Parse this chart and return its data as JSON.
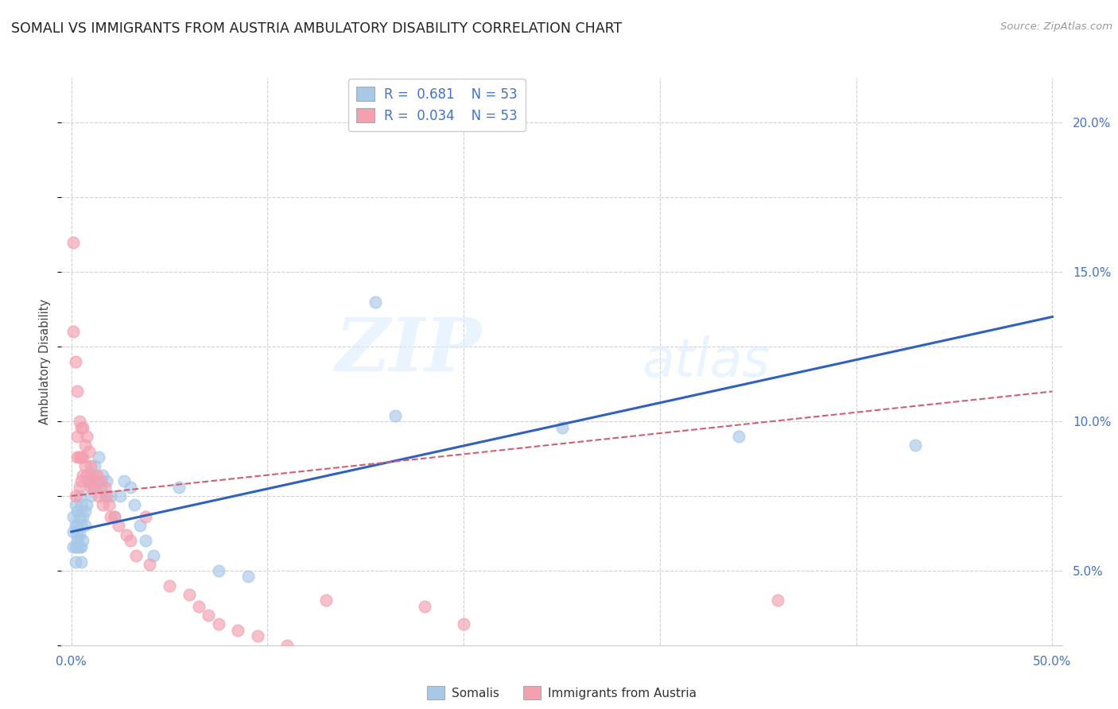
{
  "title": "SOMALI VS IMMIGRANTS FROM AUSTRIA AMBULATORY DISABILITY CORRELATION CHART",
  "source": "Source: ZipAtlas.com",
  "ylabel": "Ambulatory Disability",
  "xlim": [
    -0.005,
    0.505
  ],
  "ylim": [
    0.025,
    0.215
  ],
  "x_ticks": [
    0.0,
    0.1,
    0.2,
    0.3,
    0.4,
    0.5
  ],
  "x_tick_labels": [
    "0.0%",
    "",
    "",
    "",
    "",
    "50.0%"
  ],
  "y_ticks_right": [
    0.05,
    0.1,
    0.15,
    0.2
  ],
  "y_tick_labels_right": [
    "5.0%",
    "10.0%",
    "15.0%",
    "20.0%"
  ],
  "somali_color": "#A8C8E8",
  "austria_color": "#F4A0B0",
  "somali_line_color": "#3060C0",
  "austria_line_color": "#D06070",
  "background_color": "#FFFFFF",
  "grid_color": "#CCCCCC",
  "watermark_zip": "ZIP",
  "watermark_atlas": "atlas",
  "somali_scatter_x": [
    0.001,
    0.001,
    0.001,
    0.002,
    0.002,
    0.002,
    0.002,
    0.003,
    0.003,
    0.003,
    0.003,
    0.003,
    0.004,
    0.004,
    0.004,
    0.004,
    0.005,
    0.005,
    0.005,
    0.005,
    0.006,
    0.006,
    0.007,
    0.007,
    0.008,
    0.009,
    0.01,
    0.01,
    0.011,
    0.012,
    0.013,
    0.014,
    0.015,
    0.016,
    0.017,
    0.018,
    0.02,
    0.022,
    0.025,
    0.027,
    0.03,
    0.032,
    0.035,
    0.038,
    0.042,
    0.055,
    0.075,
    0.09,
    0.155,
    0.165,
    0.25,
    0.34,
    0.43
  ],
  "somali_scatter_y": [
    0.068,
    0.063,
    0.058,
    0.072,
    0.065,
    0.058,
    0.053,
    0.07,
    0.062,
    0.058,
    0.065,
    0.06,
    0.068,
    0.062,
    0.075,
    0.058,
    0.065,
    0.072,
    0.058,
    0.053,
    0.068,
    0.06,
    0.065,
    0.07,
    0.072,
    0.08,
    0.082,
    0.075,
    0.078,
    0.085,
    0.08,
    0.088,
    0.078,
    0.082,
    0.075,
    0.08,
    0.075,
    0.068,
    0.075,
    0.08,
    0.078,
    0.072,
    0.065,
    0.06,
    0.055,
    0.078,
    0.05,
    0.048,
    0.14,
    0.102,
    0.098,
    0.095,
    0.092
  ],
  "austria_scatter_x": [
    0.001,
    0.001,
    0.002,
    0.002,
    0.003,
    0.003,
    0.003,
    0.004,
    0.004,
    0.004,
    0.005,
    0.005,
    0.005,
    0.006,
    0.006,
    0.006,
    0.007,
    0.007,
    0.008,
    0.008,
    0.009,
    0.009,
    0.01,
    0.01,
    0.011,
    0.012,
    0.013,
    0.014,
    0.015,
    0.016,
    0.017,
    0.018,
    0.019,
    0.02,
    0.022,
    0.024,
    0.028,
    0.03,
    0.033,
    0.038,
    0.04,
    0.05,
    0.06,
    0.065,
    0.07,
    0.075,
    0.085,
    0.095,
    0.11,
    0.13,
    0.18,
    0.2,
    0.36
  ],
  "austria_scatter_y": [
    0.16,
    0.13,
    0.12,
    0.075,
    0.11,
    0.095,
    0.088,
    0.1,
    0.088,
    0.078,
    0.098,
    0.088,
    0.08,
    0.098,
    0.088,
    0.082,
    0.092,
    0.085,
    0.095,
    0.082,
    0.09,
    0.08,
    0.085,
    0.078,
    0.082,
    0.078,
    0.082,
    0.075,
    0.08,
    0.072,
    0.078,
    0.075,
    0.072,
    0.068,
    0.068,
    0.065,
    0.062,
    0.06,
    0.055,
    0.068,
    0.052,
    0.045,
    0.042,
    0.038,
    0.035,
    0.032,
    0.03,
    0.028,
    0.025,
    0.04,
    0.038,
    0.032,
    0.04
  ],
  "somali_line_x": [
    0.0,
    0.5
  ],
  "somali_line_y": [
    0.063,
    0.135
  ],
  "austria_line_x": [
    0.0,
    0.5
  ],
  "austria_line_y": [
    0.075,
    0.11
  ]
}
